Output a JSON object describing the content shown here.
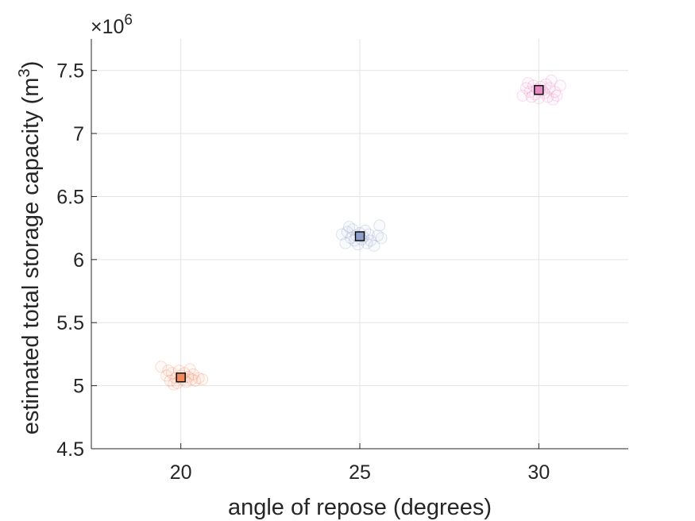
{
  "chart_data": {
    "type": "scatter",
    "title": "",
    "xlabel": "angle of repose (degrees)",
    "ylabel_main": "estimated total storage capacity (m",
    "ylabel_sup": "3",
    "ylabel_close": ")",
    "y_exponent_prefix": "×10",
    "y_exponent_power": "6",
    "xlim": [
      17.5,
      32.5
    ],
    "ylim": [
      4.5,
      7.75
    ],
    "x_ticks": [
      20,
      25,
      30
    ],
    "x_tick_labels": [
      "20",
      "25",
      "30"
    ],
    "y_ticks": [
      4.5,
      5,
      5.5,
      6,
      6.5,
      7,
      7.5
    ],
    "y_tick_labels": [
      "4.5",
      "5",
      "5.5",
      "6",
      "6.5",
      "7",
      "7.5"
    ],
    "grid": true,
    "series": [
      {
        "x": 20,
        "mean": 5.065,
        "error": 0.02,
        "color": "#f08a5d",
        "samples": [
          [
            19.45,
            5.15
          ],
          [
            19.6,
            5.08
          ],
          [
            19.7,
            5.04
          ],
          [
            19.75,
            5.1
          ],
          [
            19.85,
            5.06
          ],
          [
            19.9,
            5.02
          ],
          [
            19.95,
            5.12
          ],
          [
            20.0,
            5.08
          ],
          [
            20.05,
            5.05
          ],
          [
            20.1,
            5.1
          ],
          [
            20.15,
            5.03
          ],
          [
            20.2,
            5.07
          ],
          [
            20.3,
            5.05
          ],
          [
            20.35,
            5.09
          ],
          [
            20.4,
            5.04
          ],
          [
            20.5,
            5.06
          ],
          [
            20.6,
            5.05
          ],
          [
            19.65,
            5.12
          ],
          [
            19.8,
            5.01
          ],
          [
            20.25,
            5.13
          ]
        ]
      },
      {
        "x": 25,
        "mean": 6.185,
        "error": 0.02,
        "color": "#8d9fca",
        "samples": [
          [
            24.5,
            6.2
          ],
          [
            24.6,
            6.13
          ],
          [
            24.65,
            6.22
          ],
          [
            24.75,
            6.17
          ],
          [
            24.8,
            6.24
          ],
          [
            24.85,
            6.15
          ],
          [
            24.9,
            6.19
          ],
          [
            24.95,
            6.12
          ],
          [
            25.0,
            6.21
          ],
          [
            25.05,
            6.16
          ],
          [
            25.1,
            6.18
          ],
          [
            25.15,
            6.23
          ],
          [
            25.25,
            6.2
          ],
          [
            25.3,
            6.15
          ],
          [
            25.4,
            6.11
          ],
          [
            25.5,
            6.19
          ],
          [
            25.55,
            6.27
          ],
          [
            25.6,
            6.17
          ],
          [
            25.2,
            6.13
          ],
          [
            24.7,
            6.26
          ]
        ]
      },
      {
        "x": 30,
        "mean": 7.345,
        "error": 0.02,
        "color": "#e78ac3",
        "samples": [
          [
            29.55,
            7.3
          ],
          [
            29.65,
            7.36
          ],
          [
            29.7,
            7.4
          ],
          [
            29.75,
            7.33
          ],
          [
            29.85,
            7.38
          ],
          [
            29.9,
            7.31
          ],
          [
            29.95,
            7.35
          ],
          [
            30.0,
            7.28
          ],
          [
            30.05,
            7.37
          ],
          [
            30.1,
            7.34
          ],
          [
            30.15,
            7.32
          ],
          [
            30.2,
            7.39
          ],
          [
            30.25,
            7.29
          ],
          [
            30.3,
            7.36
          ],
          [
            30.35,
            7.42
          ],
          [
            30.4,
            7.27
          ],
          [
            30.45,
            7.33
          ],
          [
            30.5,
            7.3
          ],
          [
            30.6,
            7.38
          ],
          [
            29.8,
            7.29
          ]
        ]
      }
    ]
  }
}
